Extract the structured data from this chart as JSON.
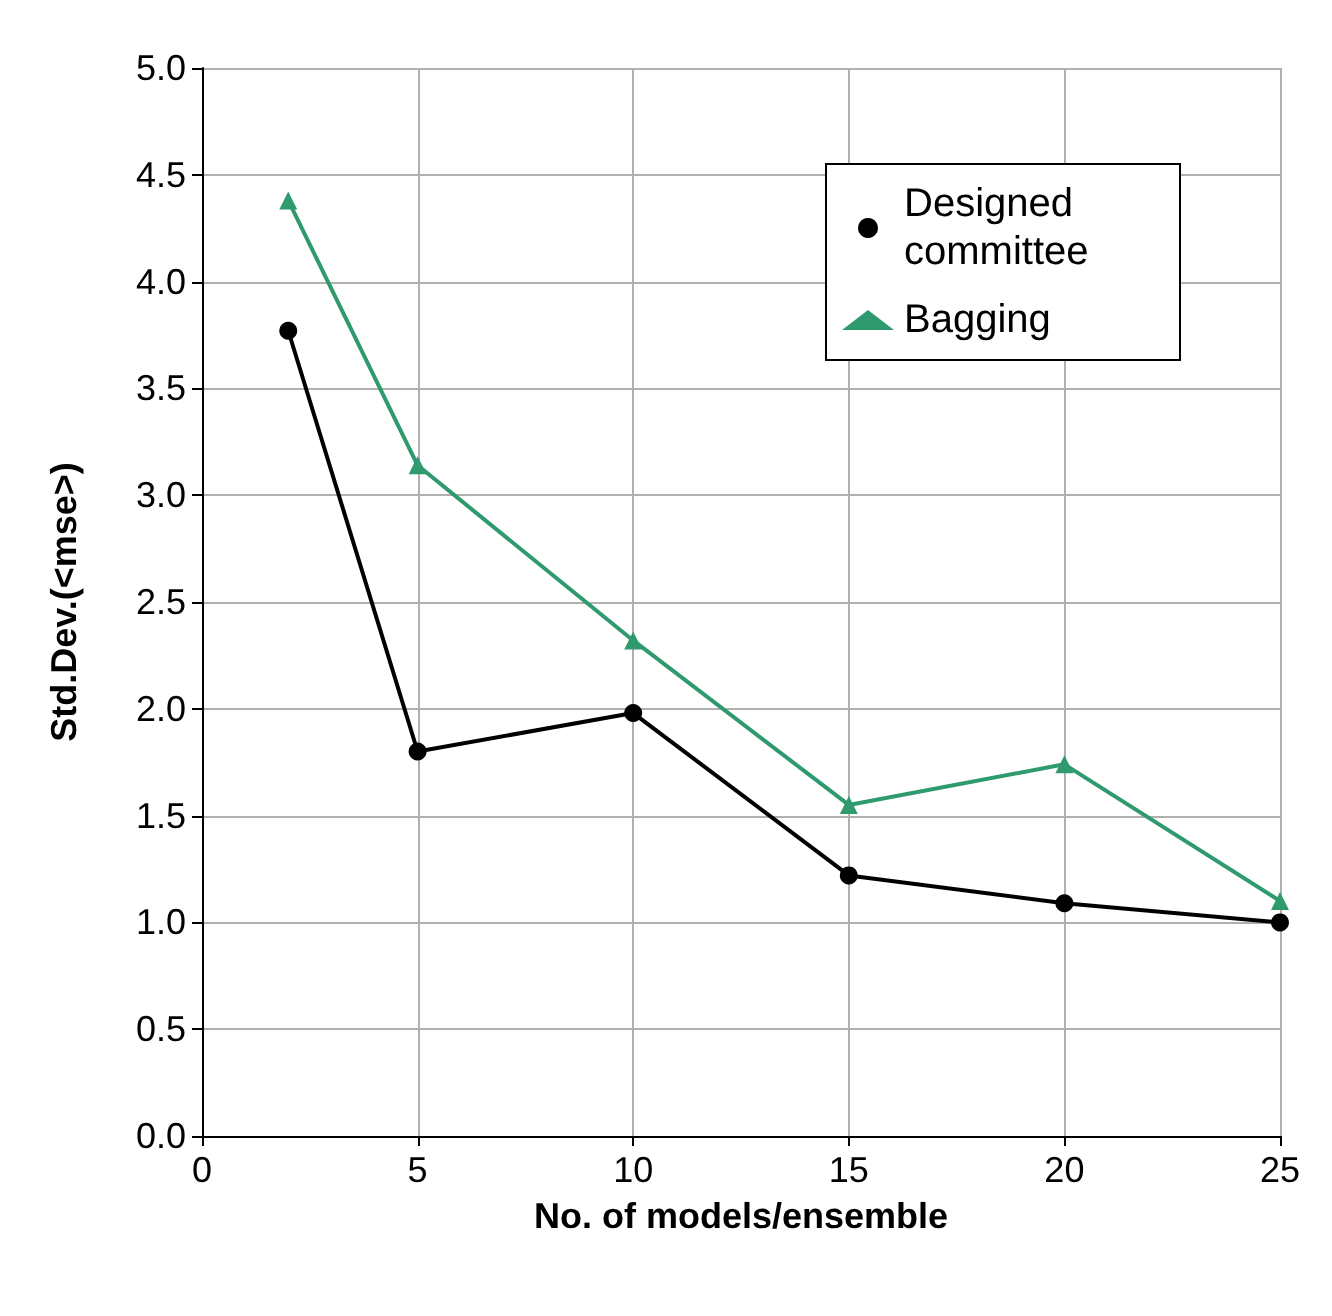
{
  "chart_data": {
    "type": "line",
    "xlabel": "No. of models/ensemble",
    "ylabel": "Std.Dev.(<mse>)",
    "x": [
      2,
      5,
      10,
      15,
      20,
      25
    ],
    "series": [
      {
        "name": "Designed committee",
        "color": "#000000",
        "marker": "circle",
        "values": [
          3.77,
          1.8,
          1.98,
          1.22,
          1.09,
          1.0
        ]
      },
      {
        "name": "Bagging",
        "color": "#2e9a6e",
        "marker": "triangle",
        "values": [
          4.38,
          3.14,
          2.32,
          1.55,
          1.74,
          1.1
        ]
      }
    ],
    "xlim": [
      0,
      25
    ],
    "xticks": [
      0,
      5,
      10,
      15,
      20,
      25
    ],
    "ylim": [
      0,
      5
    ],
    "yticks": [
      {
        "value": 0,
        "label": "0.0"
      },
      {
        "value": 0.5,
        "label": "0.5"
      },
      {
        "value": 1,
        "label": "1.0"
      },
      {
        "value": 1.5,
        "label": "1.5"
      },
      {
        "value": 2,
        "label": "2.0"
      },
      {
        "value": 2.5,
        "label": "2.5"
      },
      {
        "value": 3,
        "label": "3.0"
      },
      {
        "value": 3.5,
        "label": "3.5"
      },
      {
        "value": 4,
        "label": "4.0"
      },
      {
        "value": 4.5,
        "label": "4.5"
      },
      {
        "value": 5,
        "label": "5.0"
      }
    ],
    "grid": true,
    "legend": "top right",
    "line_style": "solid"
  }
}
